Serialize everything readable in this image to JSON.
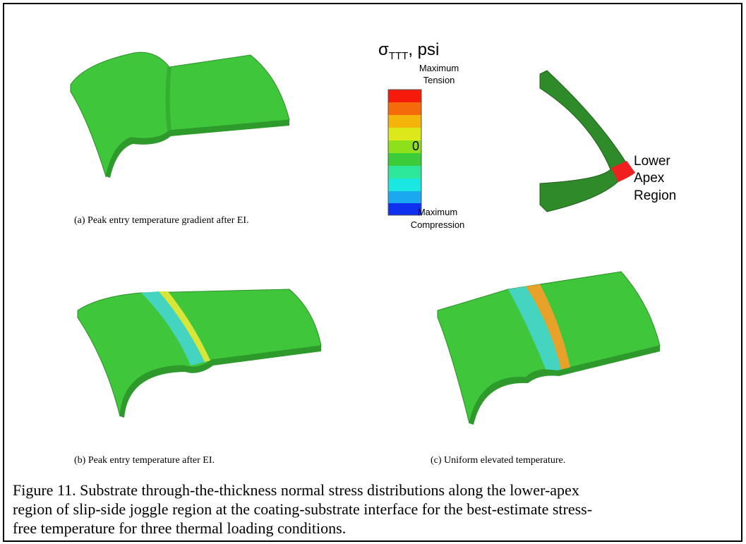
{
  "figure": {
    "legend": {
      "symbol": "σ",
      "subscript": "TTT",
      "unit": ", psi",
      "top_label": [
        "Maximum",
        "Tension"
      ],
      "zero_label": "0",
      "bottom_label": [
        "Maximum",
        "Compression"
      ]
    },
    "inset": {
      "label": [
        "Lower",
        "Apex",
        "Region"
      ]
    },
    "panels": [
      {
        "caption": "(a)  Peak entry temperature gradient after EI."
      },
      {
        "caption": "(b)  Peak entry temperature after EI."
      },
      {
        "caption": "(c)  Uniform elevated temperature."
      }
    ],
    "caption": [
      "Figure 11. Substrate through-the-thickness normal stress distributions along the lower-apex",
      "region of slip-side joggle region at the coating-substrate interface for the best-estimate stress-",
      "free temperature for three thermal loading conditions."
    ]
  }
}
